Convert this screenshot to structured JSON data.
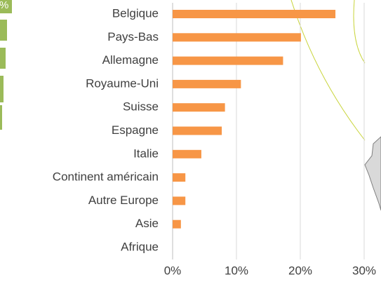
{
  "chart_data": {
    "type": "bar",
    "orientation": "horizontal",
    "categories": [
      "Belgique",
      "Pays-Bas",
      "Allemagne",
      "Royaume-Uni",
      "Suisse",
      "Espagne",
      "Italie",
      "Continent américain",
      "Autre Europe",
      "Asie",
      "Afrique"
    ],
    "values": [
      25.5,
      20.1,
      17.3,
      10.7,
      8.2,
      7.7,
      4.5,
      2.0,
      2.0,
      1.3,
      0
    ],
    "color": "#f79646",
    "xlim": [
      0,
      30
    ],
    "xticks": [
      {
        "value": 0,
        "label": "0%"
      },
      {
        "value": 10,
        "label": "10%"
      },
      {
        "value": 20,
        "label": "20%"
      },
      {
        "value": 30,
        "label": "30%"
      }
    ],
    "grid": true
  },
  "side_fragment_label": "%"
}
